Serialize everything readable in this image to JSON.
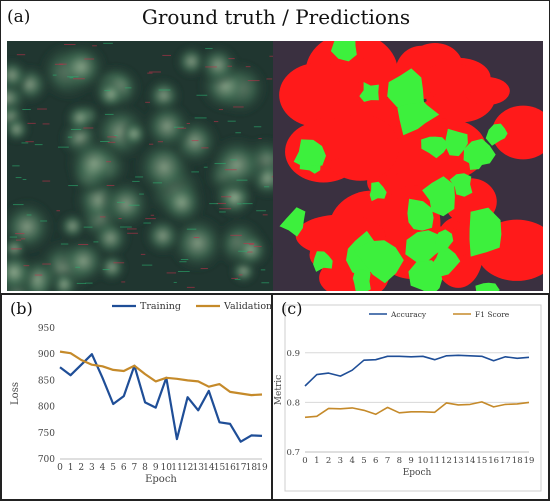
{
  "figure": {
    "panel_a": {
      "label": "(a)",
      "title": "Ground truth / Predictions"
    },
    "panel_b": {
      "label": "(b)"
    },
    "panel_c": {
      "label": "(c)"
    }
  },
  "colors": {
    "training": "#1f4e97",
    "validation": "#c58a2a",
    "accuracy": "#1f4e97",
    "f1": "#c58a2a",
    "pred_red": "#ff1a1a",
    "pred_green": "#3df03d"
  },
  "chart_data": [
    {
      "id": "loss",
      "type": "line",
      "title": "",
      "xlabel": "Epoch",
      "ylabel": "Loss",
      "x": [
        0,
        1,
        2,
        3,
        4,
        5,
        6,
        7,
        8,
        9,
        10,
        11,
        12,
        13,
        14,
        15,
        16,
        17,
        18,
        19
      ],
      "ylim": [
        700,
        950
      ],
      "yticks": [
        700,
        750,
        800,
        850,
        900,
        950
      ],
      "legend": "top-right",
      "grid": false,
      "series": [
        {
          "name": "Training",
          "values": [
            875,
            860,
            880,
            900,
            855,
            805,
            820,
            878,
            808,
            798,
            855,
            738,
            818,
            793,
            830,
            770,
            767,
            733,
            745,
            744
          ]
        },
        {
          "name": "Validation",
          "values": [
            905,
            902,
            889,
            880,
            877,
            870,
            868,
            878,
            862,
            848,
            855,
            853,
            850,
            848,
            838,
            843,
            828,
            825,
            822,
            823
          ]
        }
      ]
    },
    {
      "id": "metric",
      "type": "line",
      "title": "",
      "xlabel": "Epoch",
      "ylabel": "Metric",
      "x": [
        0,
        1,
        2,
        3,
        4,
        5,
        6,
        7,
        8,
        9,
        10,
        11,
        12,
        13,
        14,
        15,
        16,
        17,
        18,
        19
      ],
      "ylim": [
        0.7,
        0.95
      ],
      "yticks": [
        0.7,
        0.8,
        0.9
      ],
      "legend": "top",
      "grid": true,
      "series": [
        {
          "name": "Accuracy",
          "values": [
            0.833,
            0.856,
            0.859,
            0.853,
            0.865,
            0.885,
            0.886,
            0.893,
            0.893,
            0.892,
            0.893,
            0.886,
            0.894,
            0.895,
            0.894,
            0.893,
            0.884,
            0.892,
            0.889,
            0.891
          ]
        },
        {
          "name": "F1 Score",
          "values": [
            0.77,
            0.772,
            0.788,
            0.787,
            0.789,
            0.784,
            0.776,
            0.79,
            0.779,
            0.781,
            0.781,
            0.78,
            0.799,
            0.795,
            0.796,
            0.801,
            0.791,
            0.796,
            0.797,
            0.8
          ]
        }
      ]
    }
  ]
}
